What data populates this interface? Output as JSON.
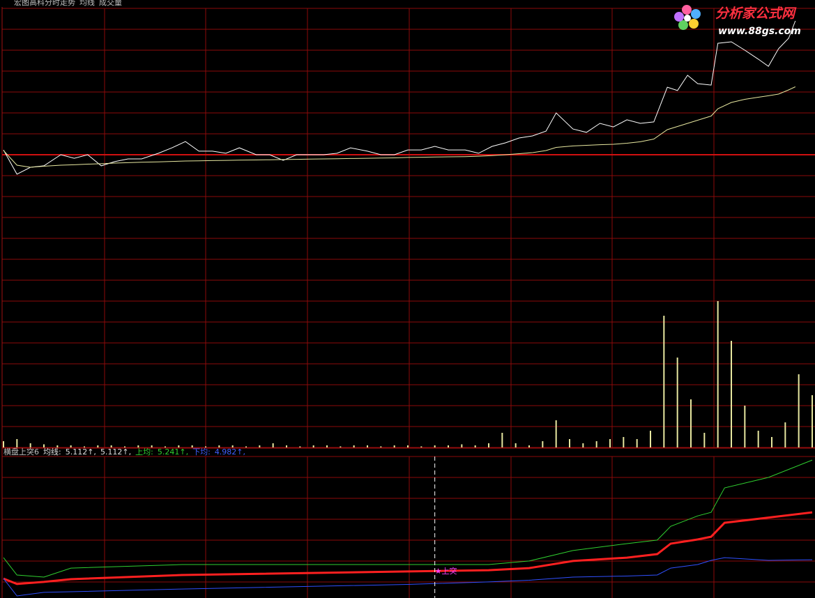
{
  "logo": {
    "name": "分析家公式网",
    "url": "www.88gs.com"
  },
  "chart_data": [
    {
      "type": "line",
      "title": "宏图高科分时走势",
      "xlim": [
        0,
        240
      ],
      "ylim": [
        -7,
        7
      ],
      "grid": true,
      "x": [
        0,
        4,
        8,
        12,
        17,
        21,
        25,
        29,
        33,
        37,
        41,
        46,
        50,
        54,
        58,
        62,
        66,
        70,
        75,
        79,
        83,
        87,
        91,
        95,
        99,
        103,
        108,
        112,
        116,
        120,
        124,
        128,
        132,
        137,
        141,
        145,
        149,
        153,
        157,
        161,
        164,
        169,
        173,
        177,
        181,
        185,
        189,
        193,
        197,
        200,
        203,
        206,
        210,
        212,
        216,
        220,
        224,
        227,
        230,
        233,
        235
      ],
      "series": [
        {
          "color": "#ffffff",
          "values": [
            0.23,
            -0.93,
            -0.6,
            -0.53,
            0,
            -0.17,
            0,
            -0.53,
            -0.33,
            -0.2,
            -0.2,
            0.07,
            0.33,
            0.63,
            0.17,
            0.17,
            0.07,
            0.33,
            0,
            0,
            -0.27,
            0,
            0,
            0,
            0.07,
            0.33,
            0.17,
            0,
            0,
            0.23,
            0.23,
            0.4,
            0.23,
            0.23,
            0.07,
            0.4,
            0.57,
            0.8,
            0.9,
            1.13,
            2,
            1.23,
            1.07,
            1.5,
            1.33,
            1.67,
            1.5,
            1.57,
            3.23,
            3.07,
            3.8,
            3.4,
            3.33,
            5.33,
            5.4,
            5,
            4.57,
            4.23,
            5.07,
            5.57,
            6.4
          ]
        },
        {
          "name": "均线",
          "color": "#e8e8a0",
          "values": [
            0.2,
            -0.5,
            -0.6,
            -0.55,
            -0.5,
            -0.48,
            -0.45,
            -0.43,
            -0.4,
            -0.38,
            -0.36,
            -0.34,
            -0.32,
            -0.3,
            -0.29,
            -0.28,
            -0.27,
            -0.26,
            -0.25,
            -0.24,
            -0.23,
            -0.22,
            -0.21,
            -0.2,
            -0.19,
            -0.18,
            -0.17,
            -0.16,
            -0.15,
            -0.13,
            -0.12,
            -0.11,
            -0.1,
            -0.09,
            -0.07,
            -0.04,
            0,
            0.05,
            0.1,
            0.2,
            0.35,
            0.42,
            0.45,
            0.48,
            0.5,
            0.55,
            0.62,
            0.75,
            1.2,
            1.35,
            1.5,
            1.65,
            1.85,
            2.2,
            2.5,
            2.65,
            2.75,
            2.82,
            2.9,
            3.1,
            3.25
          ]
        }
      ]
    },
    {
      "type": "bar",
      "title": "成交量",
      "xlim": [
        0,
        240
      ],
      "ylim": [
        0,
        7
      ],
      "color": "#e8e8a0",
      "grid": true,
      "x": [
        0,
        4,
        8,
        12,
        16,
        20,
        24,
        28,
        32,
        36,
        40,
        44,
        48,
        52,
        56,
        60,
        64,
        68,
        72,
        76,
        80,
        84,
        88,
        92,
        96,
        100,
        104,
        108,
        112,
        116,
        120,
        124,
        128,
        132,
        136,
        140,
        144,
        148,
        152,
        156,
        160,
        164,
        168,
        172,
        176,
        180,
        184,
        188,
        192,
        196,
        200,
        204,
        208,
        212,
        216,
        220,
        224,
        228,
        232,
        236,
        240
      ],
      "values": [
        0.3,
        0.4,
        0.2,
        0.15,
        0.1,
        0.1,
        0.05,
        0.1,
        0.1,
        0.05,
        0.1,
        0.1,
        0.05,
        0.1,
        0.1,
        0.05,
        0.1,
        0.1,
        0.05,
        0.1,
        0.2,
        0.1,
        0.05,
        0.1,
        0.1,
        0.05,
        0.1,
        0.1,
        0.05,
        0.1,
        0.1,
        0.05,
        0.1,
        0.1,
        0.15,
        0.1,
        0.2,
        0.7,
        0.2,
        0.1,
        0.3,
        1.3,
        0.4,
        0.2,
        0.3,
        0.4,
        0.5,
        0.4,
        0.8,
        6.3,
        4.3,
        2.3,
        0.7,
        7,
        5.1,
        2,
        0.8,
        0.5,
        1.2,
        3.5,
        2.5
      ]
    },
    {
      "type": "line",
      "title": "横盘上突6",
      "xlim": [
        0,
        240
      ],
      "ylim": [
        0,
        6.77
      ],
      "grid": true,
      "x": [
        0,
        4,
        12,
        20,
        53,
        120,
        144,
        156,
        169,
        185,
        194,
        198,
        206,
        210,
        214,
        227,
        240
      ],
      "series": [
        {
          "name": "均线:",
          "color": "#ff2020",
          "label_color": "#e0e0e0",
          "readout": [
            "5.112↑,",
            "5.112↑,"
          ],
          "values": [
            0.93,
            0.67,
            0.77,
            0.9,
            1.1,
            1.27,
            1.33,
            1.43,
            1.77,
            1.93,
            2.1,
            2.6,
            2.8,
            2.93,
            3.6,
            3.85,
            4.1
          ]
        },
        {
          "name": "上均:",
          "color": "#30d030",
          "label_color": "#30d030",
          "readout": [
            "5.241↑,"
          ],
          "values": [
            1.93,
            1.1,
            1.0,
            1.43,
            1.6,
            1.6,
            1.6,
            1.77,
            2.27,
            2.6,
            2.77,
            3.43,
            3.93,
            4.1,
            5.27,
            5.77,
            6.6
          ]
        },
        {
          "name": "下均:",
          "color": "#3050ff",
          "label_color": "#4060ff",
          "readout": [
            "4.982↑,"
          ],
          "values": [
            0.93,
            0.1,
            0.27,
            0.3,
            0.43,
            0.65,
            0.77,
            0.85,
            1.0,
            1.05,
            1.1,
            1.43,
            1.6,
            1.8,
            1.93,
            1.8,
            1.83
          ]
        }
      ],
      "annotations": [
        {
          "text": "★上突",
          "x": 128,
          "y": 1.27,
          "color": "#ff40ff"
        }
      ]
    }
  ]
}
